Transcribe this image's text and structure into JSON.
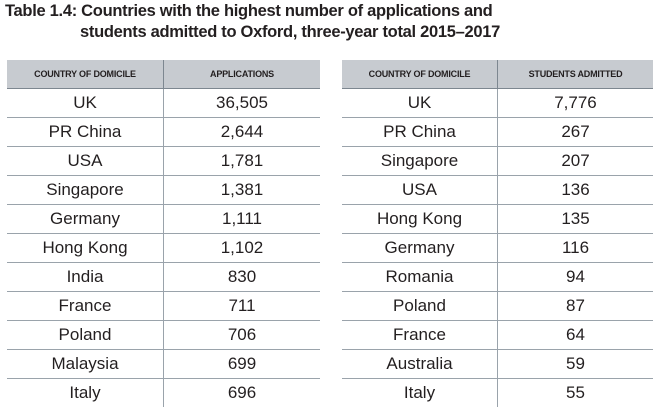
{
  "title": {
    "line1": "Table 1.4: Countries with the highest number of applications and",
    "line2": "students admitted to Oxford, three-year total 2015–2017"
  },
  "applications_table": {
    "headers": [
      "COUNTRY OF DOMICILE",
      "APPLICATIONS"
    ],
    "rows": [
      [
        "UK",
        "36,505"
      ],
      [
        "PR China",
        "2,644"
      ],
      [
        "USA",
        "1,781"
      ],
      [
        "Singapore",
        "1,381"
      ],
      [
        "Germany",
        "1,111"
      ],
      [
        "Hong Kong",
        "1,102"
      ],
      [
        "India",
        "830"
      ],
      [
        "France",
        "711"
      ],
      [
        "Poland",
        "706"
      ],
      [
        "Malaysia",
        "699"
      ],
      [
        "Italy",
        "696"
      ]
    ]
  },
  "admitted_table": {
    "headers": [
      "COUNTRY OF DOMICILE",
      "STUDENTS ADMITTED"
    ],
    "rows": [
      [
        "UK",
        "7,776"
      ],
      [
        "PR China",
        "267"
      ],
      [
        "Singapore",
        "207"
      ],
      [
        "USA",
        "136"
      ],
      [
        "Hong Kong",
        "135"
      ],
      [
        "Germany",
        "116"
      ],
      [
        "Romania",
        "94"
      ],
      [
        "Poland",
        "87"
      ],
      [
        "France",
        "64"
      ],
      [
        "Australia",
        "59"
      ],
      [
        "Italy",
        "55"
      ]
    ]
  }
}
